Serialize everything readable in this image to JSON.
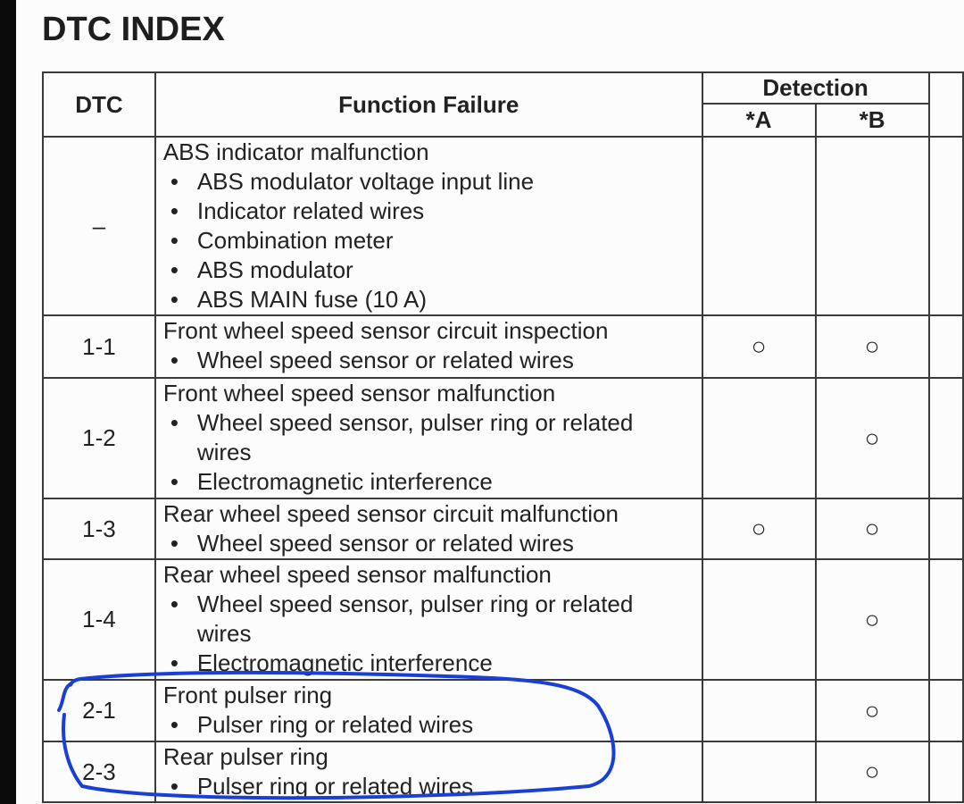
{
  "title": "DTC INDEX",
  "headers": {
    "dtc": "DTC",
    "function": "Function Failure",
    "detection": "Detection",
    "a": "*A",
    "b": "*B"
  },
  "rows": [
    {
      "dtc": "–",
      "title": "ABS indicator malfunction",
      "items": [
        "ABS modulator voltage input line",
        "Indicator related wires",
        "Combination meter",
        "ABS modulator",
        "ABS MAIN fuse (10 A)"
      ],
      "a": "",
      "b": ""
    },
    {
      "dtc": "1-1",
      "title": "Front wheel speed sensor circuit inspection",
      "items": [
        "Wheel speed sensor or related wires"
      ],
      "a": "○",
      "b": "○"
    },
    {
      "dtc": "1-2",
      "title": "Front wheel speed sensor malfunction",
      "items": [
        "Wheel speed sensor, pulser ring or related",
        "Electromagnetic interference"
      ],
      "wrap": "wires",
      "a": "",
      "b": "○"
    },
    {
      "dtc": "1-3",
      "title": "Rear wheel speed sensor circuit malfunction",
      "items": [
        "Wheel speed sensor or related wires"
      ],
      "a": "○",
      "b": "○"
    },
    {
      "dtc": "1-4",
      "title": "Rear wheel speed sensor malfunction",
      "items": [
        "Wheel speed sensor, pulser ring or related",
        "Electromagnetic interference"
      ],
      "wrap": "wires",
      "a": "",
      "b": "○"
    },
    {
      "dtc": "2-1",
      "title": "Front pulser ring",
      "items": [
        "Pulser ring or related wires"
      ],
      "a": "",
      "b": "○"
    },
    {
      "dtc": "2-3",
      "title": "Rear pulser ring",
      "items": [
        "Pulser ring or related wires"
      ],
      "a": "",
      "b": "○"
    }
  ],
  "annotation_color": "#1a3fd6"
}
